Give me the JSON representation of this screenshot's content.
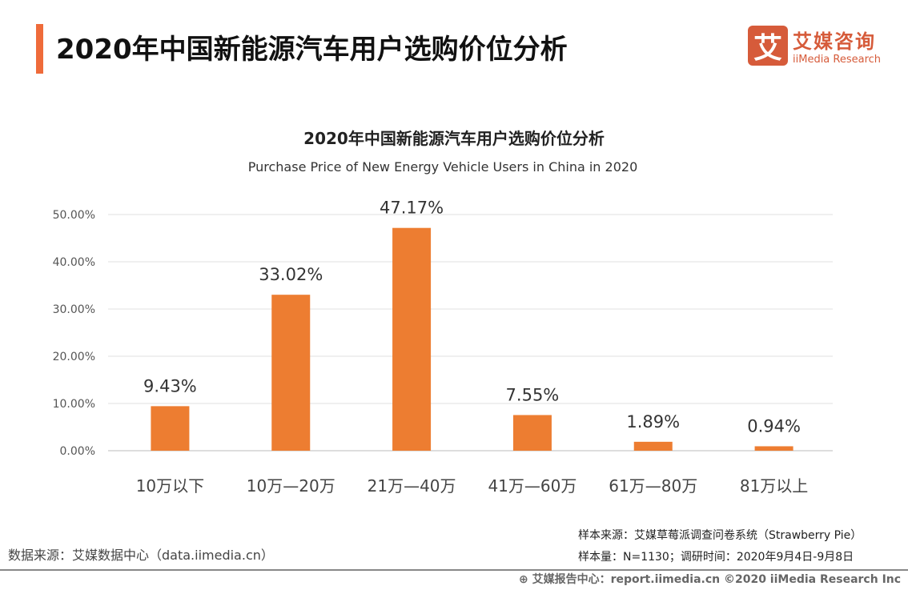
{
  "header": {
    "title": "2020年中国新能源汽车用户选购价位分析",
    "logo_cn": "艾媒咨询",
    "logo_en": "iiMedia Research",
    "logo_mark": "艾"
  },
  "chart_data": {
    "type": "bar",
    "title": "2020年中国新能源汽车用户选购价位分析",
    "subtitle": "Purchase Price of New Energy Vehicle Users in China in 2020",
    "categories": [
      "10万以下",
      "10万—20万",
      "21万—40万",
      "41万—60万",
      "61万—80万",
      "81万以上"
    ],
    "values": [
      9.43,
      33.02,
      47.17,
      7.55,
      1.89,
      0.94
    ],
    "data_labels": [
      "9.43%",
      "33.02%",
      "47.17%",
      "7.55%",
      "1.89%",
      "0.94%"
    ],
    "yticks": [
      "0.00%",
      "10.00%",
      "20.00%",
      "30.00%",
      "40.00%",
      "50.00%"
    ],
    "ylim": [
      0,
      50
    ],
    "grid": true,
    "bar_color": "#ed7d31"
  },
  "footer": {
    "source": "数据来源：艾媒数据中心（data.iimedia.cn）",
    "sample_source": "样本来源：艾媒草莓派调查问卷系统（Strawberry Pie）",
    "sample_size": "样本量：N=1130；调研时间：2020年9月4日-9月8日",
    "copyright": "艾媒报告中心：report.iimedia.cn   ©2020  iiMedia Research  Inc"
  }
}
